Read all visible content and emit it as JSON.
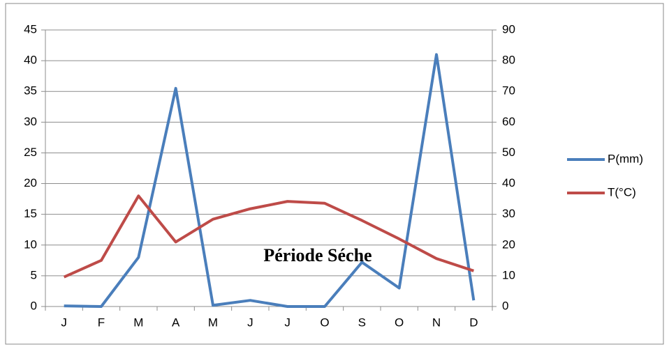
{
  "chart_data": {
    "type": "line",
    "categories": [
      "J",
      "F",
      "M",
      "A",
      "M",
      "J",
      "J",
      "O",
      "S",
      "O",
      "N",
      "D"
    ],
    "series": [
      {
        "name": "P(mm)",
        "color": "#4a7ebb",
        "values": [
          0.1,
          0,
          8,
          35.5,
          0.2,
          1,
          0,
          0,
          7.2,
          3,
          41,
          1
        ]
      },
      {
        "name": "T(°C)",
        "color": "#be4b48",
        "axis": "y2",
        "values": [
          9.6,
          15,
          36,
          21,
          28.4,
          31.8,
          34.2,
          33.6,
          28,
          22,
          15.6,
          11.6
        ]
      }
    ],
    "ylim": [
      0,
      45
    ],
    "yticks": [
      0,
      5,
      10,
      15,
      20,
      25,
      30,
      35,
      40,
      45
    ],
    "y2lim": [
      0,
      90
    ],
    "y2ticks": [
      0,
      10,
      20,
      30,
      40,
      50,
      60,
      70,
      80,
      90
    ],
    "grid": true,
    "legend": "right",
    "annotations": [
      "Période Séche"
    ]
  }
}
